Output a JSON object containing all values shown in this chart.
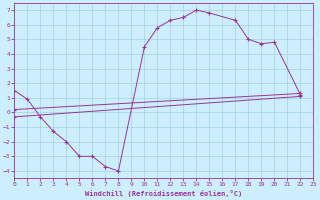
{
  "xlabel": "Windchill (Refroidissement éolien,°C)",
  "bg_color": "#cceeff",
  "line_color": "#993399",
  "xlim": [
    0,
    23
  ],
  "ylim": [
    -4.5,
    7.5
  ],
  "xticks": [
    0,
    1,
    2,
    3,
    4,
    5,
    6,
    7,
    8,
    9,
    10,
    11,
    12,
    13,
    14,
    15,
    16,
    17,
    18,
    19,
    20,
    21,
    22,
    23
  ],
  "yticks": [
    -4,
    -3,
    -2,
    -1,
    0,
    1,
    2,
    3,
    4,
    5,
    6,
    7
  ],
  "curve_x": [
    0,
    1,
    2,
    3,
    4,
    5,
    6,
    7,
    8,
    10,
    11,
    12,
    13,
    14,
    15,
    17,
    18,
    19,
    20,
    22
  ],
  "curve_y": [
    1.5,
    0.9,
    -0.3,
    -1.3,
    -2.0,
    -3.0,
    -3.0,
    -3.7,
    -4.0,
    4.5,
    5.8,
    6.3,
    6.5,
    7.0,
    6.8,
    6.3,
    5.0,
    4.7,
    4.8,
    1.2
  ],
  "line1_x": [
    0,
    22
  ],
  "line1_y": [
    -0.3,
    1.1
  ],
  "line2_x": [
    0,
    22
  ],
  "line2_y": [
    0.2,
    1.3
  ]
}
